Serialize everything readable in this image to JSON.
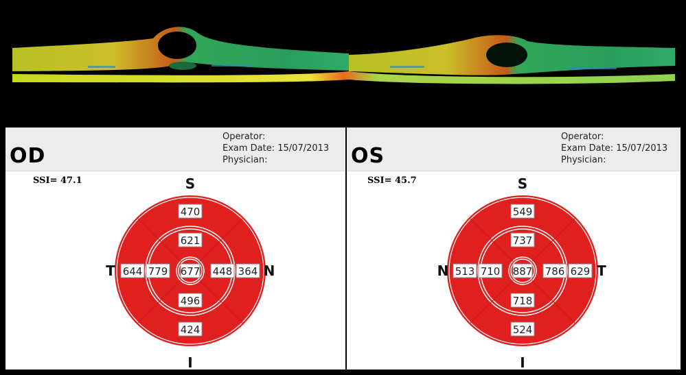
{
  "colors": {
    "sector_fill": "#e01f1f",
    "ring_line": "#ffffff",
    "background": "#000000",
    "header_bg": "#ececec"
  },
  "od": {
    "eye": "OD",
    "operator_label": "Operator:",
    "exam_date_label": "Exam Date: 15/07/2013",
    "physician_label": "Physician:",
    "ssi": "SSI= 47.1",
    "dir_top": "S",
    "dir_bottom": "I",
    "dir_left": "T",
    "dir_right": "N",
    "values": {
      "outer_top": "470",
      "inner_top": "621",
      "outer_left": "644",
      "inner_left": "779",
      "center": "677",
      "inner_right": "448",
      "outer_right": "364",
      "inner_bottom": "496",
      "outer_bottom": "424"
    }
  },
  "os": {
    "eye": "OS",
    "operator_label": "Operator:",
    "exam_date_label": "Exam Date: 15/07/2013",
    "physician_label": "Physician:",
    "ssi": "SSI= 45.7",
    "dir_top": "S",
    "dir_bottom": "I",
    "dir_left": "N",
    "dir_right": "T",
    "values": {
      "outer_top": "549",
      "inner_top": "737",
      "outer_left": "513",
      "inner_left": "710",
      "center": "887",
      "inner_right": "786",
      "outer_right": "629",
      "inner_bottom": "718",
      "outer_bottom": "524"
    }
  }
}
